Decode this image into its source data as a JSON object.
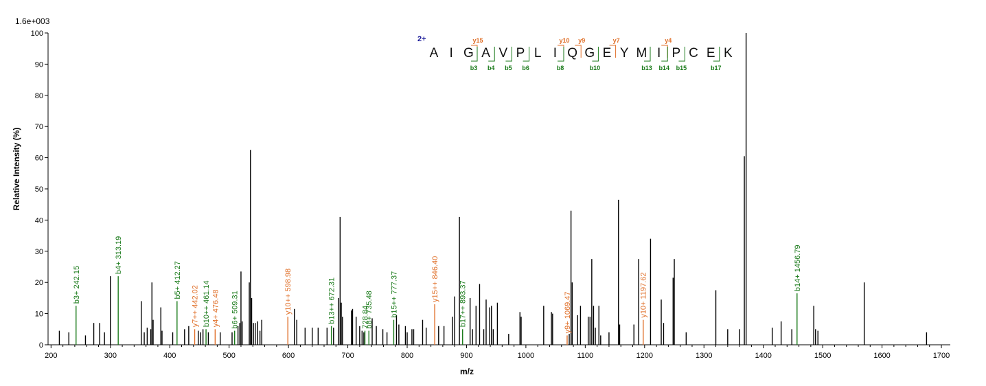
{
  "chart_data": {
    "type": "bar",
    "subtype": "mass-spectrum",
    "title": "",
    "xlabel": "m/z",
    "ylabel": "Relative   Intensity (%)",
    "intensity_scale_label": "1.6e+003",
    "xlim": [
      195,
      1715
    ],
    "ylim": [
      0,
      100
    ],
    "x_ticks": [
      200,
      300,
      400,
      500,
      600,
      700,
      800,
      900,
      1000,
      1100,
      1200,
      1300,
      1400,
      1500,
      1600,
      1700
    ],
    "y_ticks": [
      0,
      10,
      20,
      30,
      40,
      50,
      60,
      70,
      80,
      90,
      100
    ],
    "grid": false,
    "colors": {
      "peak": "#000000",
      "b_ion": "#1a7a1a",
      "y_ion": "#e0702a",
      "charge": "#1a1a99"
    },
    "peaks": [
      [
        214,
        4.5
      ],
      [
        230,
        4
      ],
      [
        258,
        3
      ],
      [
        272,
        7
      ],
      [
        282,
        7
      ],
      [
        290,
        4
      ],
      [
        300,
        22
      ],
      [
        352,
        14
      ],
      [
        357,
        4
      ],
      [
        362,
        5.5
      ],
      [
        368,
        5
      ],
      [
        370,
        20
      ],
      [
        372,
        8
      ],
      [
        385,
        12
      ],
      [
        387,
        4.5
      ],
      [
        405,
        4
      ],
      [
        425,
        5
      ],
      [
        432,
        6
      ],
      [
        448,
        4.5
      ],
      [
        452,
        4
      ],
      [
        456,
        5
      ],
      [
        460,
        4
      ],
      [
        465,
        4
      ],
      [
        485,
        4
      ],
      [
        505,
        4
      ],
      [
        515,
        6
      ],
      [
        518,
        7
      ],
      [
        520,
        23.5
      ],
      [
        522,
        7.5
      ],
      [
        534,
        20
      ],
      [
        536,
        62.5
      ],
      [
        538,
        15
      ],
      [
        541,
        7
      ],
      [
        544,
        7
      ],
      [
        548,
        7.5
      ],
      [
        552,
        4.5
      ],
      [
        555,
        8
      ],
      [
        610,
        11.5
      ],
      [
        614,
        8
      ],
      [
        628,
        5.5
      ],
      [
        640,
        5.5
      ],
      [
        650,
        5.5
      ],
      [
        665,
        5.5
      ],
      [
        676,
        5.5
      ],
      [
        684,
        15
      ],
      [
        687,
        41
      ],
      [
        689,
        13.5
      ],
      [
        691,
        9
      ],
      [
        706,
        11
      ],
      [
        708,
        11.5
      ],
      [
        714,
        9
      ],
      [
        720,
        6
      ],
      [
        724,
        4.5
      ],
      [
        727,
        4
      ],
      [
        741,
        8.5
      ],
      [
        748,
        6
      ],
      [
        759,
        5
      ],
      [
        766,
        4
      ],
      [
        782,
        9.5
      ],
      [
        786,
        6.5
      ],
      [
        797,
        6
      ],
      [
        800,
        4
      ],
      [
        808,
        5
      ],
      [
        811,
        5
      ],
      [
        826,
        8
      ],
      [
        832,
        5.5
      ],
      [
        853,
        6
      ],
      [
        862,
        6
      ],
      [
        876,
        9
      ],
      [
        880,
        15.5
      ],
      [
        888,
        41
      ],
      [
        906,
        15
      ],
      [
        910,
        5
      ],
      [
        916,
        12.5
      ],
      [
        922,
        19.5
      ],
      [
        929,
        5
      ],
      [
        933,
        14.5
      ],
      [
        939,
        12
      ],
      [
        942,
        12.5
      ],
      [
        945,
        5
      ],
      [
        952,
        13.5
      ],
      [
        971,
        3.5
      ],
      [
        990,
        10.5
      ],
      [
        992,
        9
      ],
      [
        1030,
        12.5
      ],
      [
        1043,
        10.5
      ],
      [
        1045,
        10
      ],
      [
        1073,
        3.5
      ],
      [
        1076,
        43
      ],
      [
        1078,
        20
      ],
      [
        1087,
        9.5
      ],
      [
        1092,
        12.5
      ],
      [
        1105,
        9
      ],
      [
        1108,
        9
      ],
      [
        1111,
        27.5
      ],
      [
        1114,
        12.5
      ],
      [
        1117,
        5.5
      ],
      [
        1123,
        12.5
      ],
      [
        1126,
        3
      ],
      [
        1140,
        4
      ],
      [
        1156,
        46.5
      ],
      [
        1158,
        6.5
      ],
      [
        1182,
        6.5
      ],
      [
        1190,
        27.5
      ],
      [
        1210,
        34
      ],
      [
        1228,
        14.5
      ],
      [
        1232,
        7
      ],
      [
        1248,
        21.5
      ],
      [
        1250,
        27.5
      ],
      [
        1270,
        4
      ],
      [
        1320,
        17.5
      ],
      [
        1340,
        5
      ],
      [
        1360,
        5
      ],
      [
        1368,
        60.5
      ],
      [
        1371,
        100
      ],
      [
        1415,
        5.5
      ],
      [
        1430,
        7.5
      ],
      [
        1448,
        5
      ],
      [
        1458,
        4
      ],
      [
        1485,
        12.5
      ],
      [
        1488,
        5
      ],
      [
        1492,
        4.5
      ],
      [
        1570,
        20
      ],
      [
        1675,
        4
      ]
    ],
    "annotations": [
      {
        "label": "b3+ 242.15",
        "x": 242.15,
        "y": 12.5,
        "ion": "b"
      },
      {
        "label": "b4+ 313.19",
        "x": 313.19,
        "y": 22,
        "ion": "b"
      },
      {
        "label": "b5+ 412.27",
        "x": 412.27,
        "y": 14,
        "ion": "b"
      },
      {
        "label": "y7++ 442.02",
        "x": 442.02,
        "y": 5,
        "ion": "y"
      },
      {
        "label": "b10++ 461.14",
        "x": 461.14,
        "y": 5,
        "ion": "b"
      },
      {
        "label": "y4+ 476.48",
        "x": 476.48,
        "y": 5,
        "ion": "y"
      },
      {
        "label": "b6+ 509.31",
        "x": 509.31,
        "y": 4.5,
        "ion": "b"
      },
      {
        "label": "y10++ 598.98",
        "x": 598.98,
        "y": 9,
        "ion": "y"
      },
      {
        "label": "b13++ 672.31",
        "x": 672.31,
        "y": 6,
        "ion": "b"
      },
      {
        "label": "728.84",
        "x": 728.84,
        "y": 4.5,
        "ion": "b"
      },
      {
        "label": "b8+ 735.48",
        "x": 735.48,
        "y": 4.5,
        "ion": "b"
      },
      {
        "label": "b15++ 777.37",
        "x": 777.37,
        "y": 8,
        "ion": "b"
      },
      {
        "label": "y15++ 846.40",
        "x": 846.4,
        "y": 13,
        "ion": "y"
      },
      {
        "label": "b17++ 893.37",
        "x": 893.37,
        "y": 5,
        "ion": "b"
      },
      {
        "label": "y9+ 1069.47",
        "x": 1069.47,
        "y": 3,
        "ion": "y"
      },
      {
        "label": "y10+ 1197.62",
        "x": 1197.62,
        "y": 8,
        "ion": "y"
      },
      {
        "label": "b14+ 1456.79",
        "x": 1456.79,
        "y": 16.5,
        "ion": "b"
      }
    ],
    "sequence": {
      "charge_label": "2+",
      "residues": [
        "A",
        "I",
        "G",
        "A",
        "V",
        "P",
        "L",
        "I",
        "Q",
        "G",
        "E",
        "Y",
        "M",
        "I",
        "P",
        "C",
        "E",
        "K"
      ],
      "y_ions": [
        {
          "label": "y15",
          "after": 3
        },
        {
          "label": "y10",
          "after": 8
        },
        {
          "label": "y9",
          "after": 9
        },
        {
          "label": "y7",
          "after": 11
        },
        {
          "label": "y4",
          "after": 14
        }
      ],
      "b_ions": [
        {
          "label": "b3",
          "after": 3
        },
        {
          "label": "b4",
          "after": 4
        },
        {
          "label": "b5",
          "after": 5
        },
        {
          "label": "b6",
          "after": 6
        },
        {
          "label": "b8",
          "after": 8
        },
        {
          "label": "b10",
          "after": 10
        },
        {
          "label": "b13",
          "after": 13
        },
        {
          "label": "b14",
          "after": 14
        },
        {
          "label": "b15",
          "after": 15
        },
        {
          "label": "b17",
          "after": 17
        }
      ]
    }
  }
}
